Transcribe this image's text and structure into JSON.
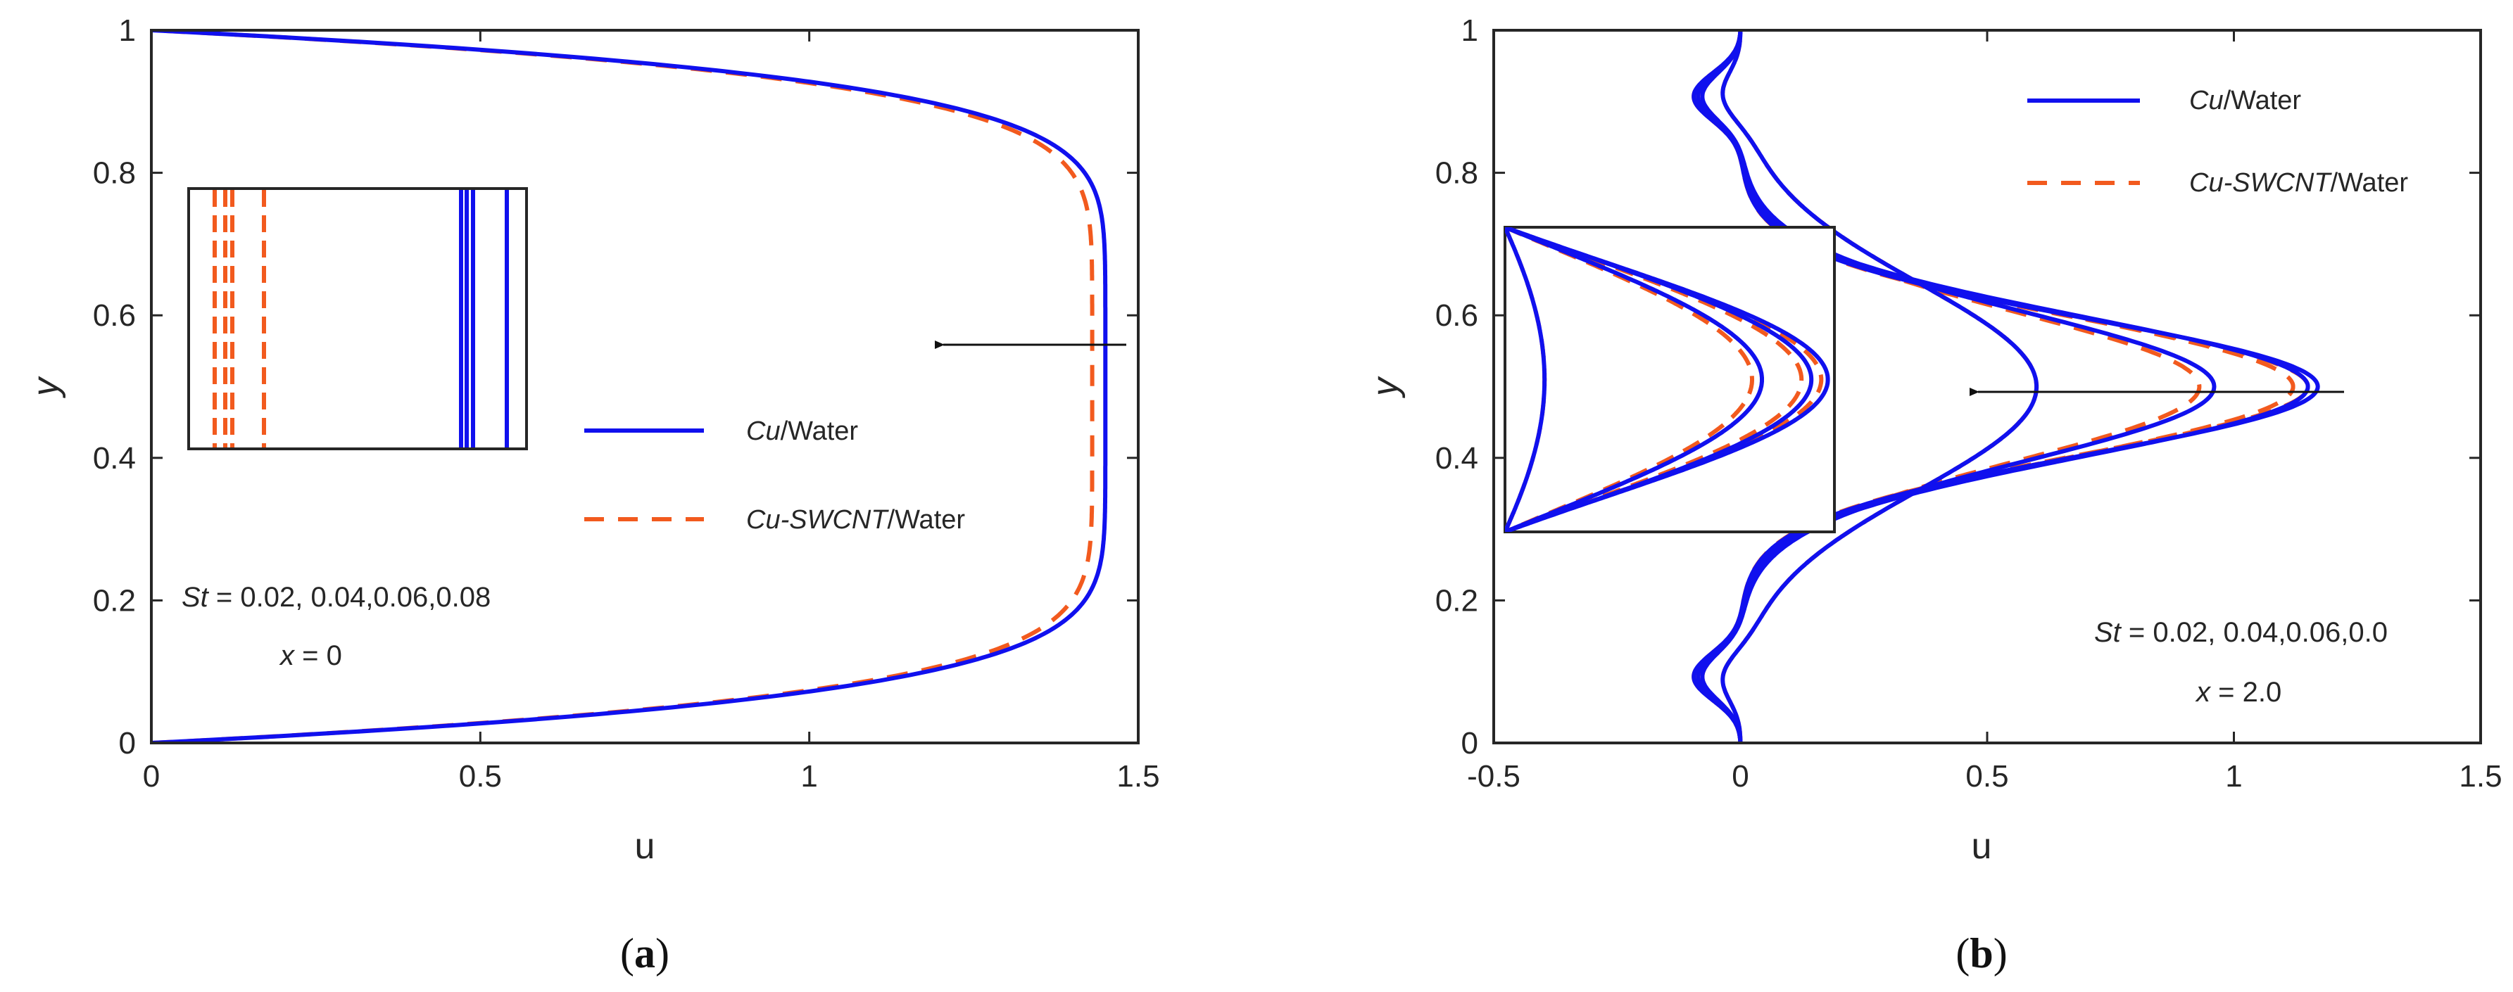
{
  "colors": {
    "cu_water": "#1010ee",
    "cu_swcnt": "#f25a1e",
    "axes": "#262626",
    "arrow": "#111111"
  },
  "chart_data": [
    {
      "type": "line",
      "panel_label": "a",
      "xlabel": "u",
      "ylabel": "y",
      "xlim": [
        0,
        1.5
      ],
      "ylim": [
        0,
        1
      ],
      "xticks": [
        "0",
        "0.5",
        "1",
        "1.5"
      ],
      "yticks": [
        "0",
        "0.2",
        "0.4",
        "0.6",
        "0.8",
        "1"
      ],
      "legend": [
        {
          "name_italic": "Cu",
          "name_rest": "/Water",
          "style": "solid"
        },
        {
          "name_italic": "Cu-SWCNT",
          "name_rest": "/Water",
          "style": "dashed"
        }
      ],
      "annotations": {
        "st_symbol": "St",
        "st_values": " = 0.02, 0.04,0.06,0.08",
        "x_symbol": "x",
        "x_value": " = 0"
      },
      "series": [
        {
          "name": "Cu/Water",
          "style": "solid",
          "u_max": 1.45
        },
        {
          "name": "Cu-SWCNT/Water",
          "style": "dashed",
          "u_max": 1.43
        }
      ],
      "inset": {
        "solid_lines": 4,
        "dashed_lines": 4
      }
    },
    {
      "type": "line",
      "panel_label": "b",
      "xlabel": "u",
      "ylabel": "y",
      "xlim": [
        -0.5,
        1.5
      ],
      "ylim": [
        0,
        1
      ],
      "xticks": [
        "-0.5",
        "0",
        "0.5",
        "1",
        "1.5"
      ],
      "yticks": [
        "0",
        "0.2",
        "0.4",
        "0.6",
        "0.8",
        "1"
      ],
      "legend": [
        {
          "name_italic": "Cu",
          "name_rest": "/Water",
          "style": "solid"
        },
        {
          "name_italic": "Cu-SWCNT",
          "name_rest": "/Water",
          "style": "dashed"
        }
      ],
      "annotations": {
        "st_symbol": "St",
        "st_values": " = 0.02, 0.04,0.06,0.0",
        "x_symbol": "x",
        "x_value": " = 2.0"
      },
      "series": [
        {
          "name": "Cu/Water",
          "style": "solid",
          "peaks": [
            1.17,
            1.15,
            0.96,
            0.6
          ]
        },
        {
          "name": "Cu-SWCNT/Water",
          "style": "dashed",
          "peaks": [
            1.15,
            1.12,
            0.93,
            0.6
          ]
        }
      ],
      "inset": {
        "curves": 4
      }
    }
  ]
}
